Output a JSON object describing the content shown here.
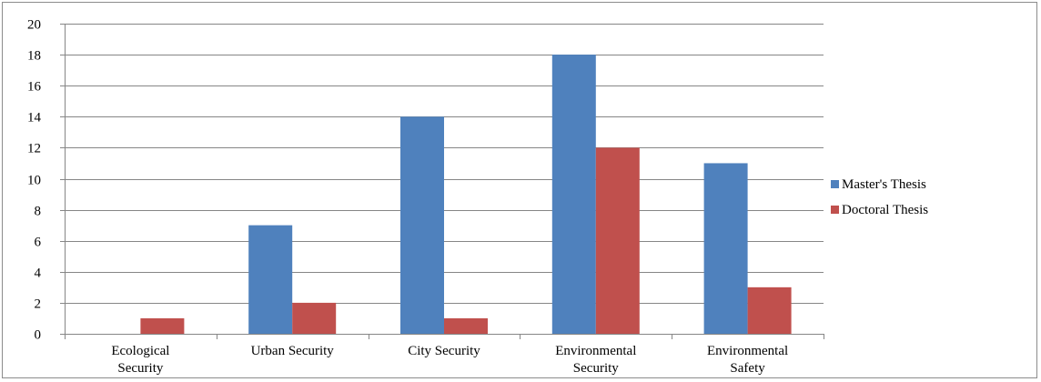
{
  "chart_data": {
    "type": "bar",
    "title": "",
    "xlabel": "",
    "ylabel": "",
    "categories": [
      [
        "Ecological",
        "Security"
      ],
      [
        "Urban Security"
      ],
      [
        "City Security"
      ],
      [
        "Environmental",
        "Security"
      ],
      [
        "Environmental",
        "Safety"
      ]
    ],
    "series": [
      {
        "name": "Master's Thesis",
        "color": "#4f81bd",
        "values": [
          0,
          7,
          14,
          18,
          11
        ]
      },
      {
        "name": "Doctoral Thesis",
        "color": "#c0504d",
        "values": [
          1,
          2,
          1,
          12,
          3
        ]
      }
    ],
    "ylim": [
      0,
      20
    ],
    "yticks": [
      0,
      2,
      4,
      6,
      8,
      10,
      12,
      14,
      16,
      18,
      20
    ],
    "grid": true,
    "legend": "right"
  }
}
